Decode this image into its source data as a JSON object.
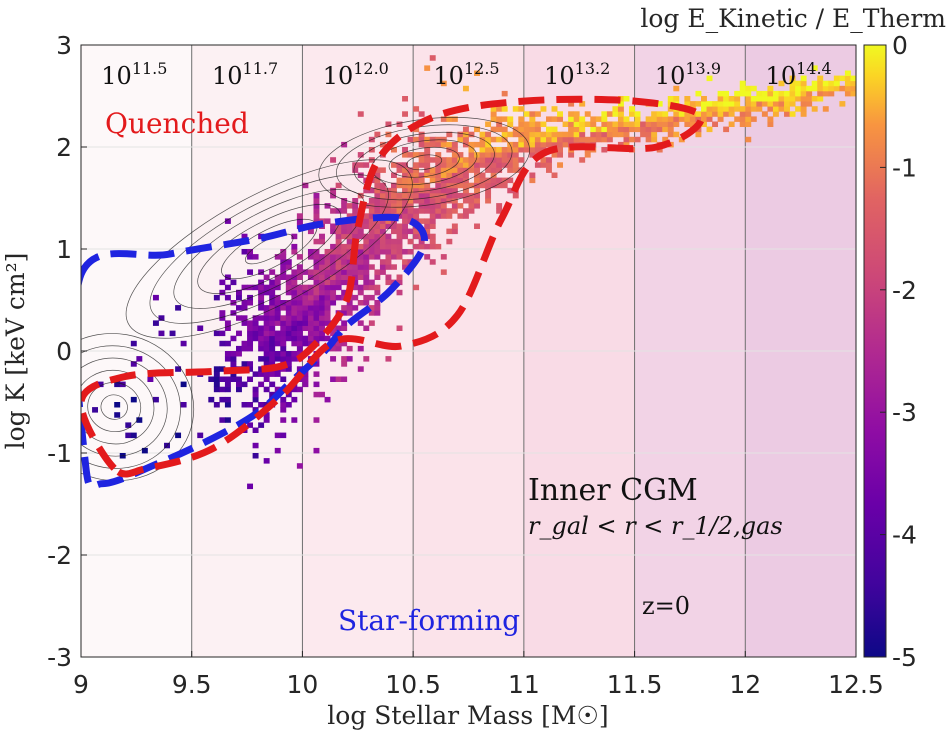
{
  "chart_data": {
    "type": "heatmap",
    "xlabel": "log Stellar Mass [M☉]",
    "ylabel": "log K [keV cm²]",
    "xlim": [
      9,
      12.5
    ],
    "ylim": [
      -3,
      3
    ],
    "x_ticks": [
      9,
      9.5,
      10,
      10.5,
      11,
      11.5,
      12,
      12.5
    ],
    "x_tick_labels": [
      "9",
      "9.5",
      "10",
      "10.5",
      "11",
      "11.5",
      "12",
      "12.5"
    ],
    "y_ticks": [
      -3,
      -2,
      -1,
      0,
      1,
      2,
      3
    ],
    "y_tick_labels": [
      "-3",
      "-2",
      "-1",
      "0",
      "1",
      "2",
      "3"
    ],
    "colorbar": {
      "label": "log E_Kinetic / E_Therm",
      "range": [
        -5,
        0
      ],
      "ticks": [
        0,
        -1,
        -2,
        -3,
        -4,
        -5
      ],
      "tick_labels": [
        "0",
        "-1",
        "-2",
        "-3",
        "-4",
        "-5"
      ],
      "colormap": "plasma"
    },
    "halo_mass_bands": [
      {
        "x_range": [
          9.0,
          9.5
        ],
        "label_base": "10",
        "label_exp": "11.5",
        "shade": "#fdf8f9"
      },
      {
        "x_range": [
          9.5,
          10.0
        ],
        "label_base": "10",
        "label_exp": "11.7",
        "shade": "#fcf1f3"
      },
      {
        "x_range": [
          10.0,
          10.5
        ],
        "label_base": "10",
        "label_exp": "12.0",
        "shade": "#fce9ee"
      },
      {
        "x_range": [
          10.5,
          11.0
        ],
        "label_base": "10",
        "label_exp": "12.5",
        "shade": "#fbe3ea"
      },
      {
        "x_range": [
          11.0,
          11.5
        ],
        "label_base": "10",
        "label_exp": "13.2",
        "shade": "#f9dbe6"
      },
      {
        "x_range": [
          11.5,
          12.0
        ],
        "label_base": "10",
        "label_exp": "13.9",
        "shade": "#f2d3e6"
      },
      {
        "x_range": [
          12.0,
          12.5
        ],
        "label_base": "10",
        "label_exp": "14.4",
        "shade": "#eccbe3"
      }
    ],
    "ridge": [
      {
        "x": 9.0,
        "y": -0.55,
        "w": 0.5,
        "c": -4.6
      },
      {
        "x": 9.2,
        "y": -0.45,
        "w": 0.65,
        "c": -4.5
      },
      {
        "x": 9.4,
        "y": -0.3,
        "w": 0.75,
        "c": -4.4
      },
      {
        "x": 9.6,
        "y": -0.15,
        "w": 0.8,
        "c": -4.2
      },
      {
        "x": 9.8,
        "y": 0.05,
        "w": 0.85,
        "c": -3.7
      },
      {
        "x": 10.0,
        "y": 0.35,
        "w": 0.85,
        "c": -3.0
      },
      {
        "x": 10.2,
        "y": 0.85,
        "w": 0.85,
        "c": -2.3
      },
      {
        "x": 10.4,
        "y": 1.3,
        "w": 0.8,
        "c": -1.7
      },
      {
        "x": 10.6,
        "y": 1.65,
        "w": 0.7,
        "c": -1.3
      },
      {
        "x": 10.8,
        "y": 1.85,
        "w": 0.5,
        "c": -1.0
      },
      {
        "x": 11.0,
        "y": 2.0,
        "w": 0.35,
        "c": -0.85
      },
      {
        "x": 11.3,
        "y": 2.15,
        "w": 0.25,
        "c": -0.7
      },
      {
        "x": 11.6,
        "y": 2.25,
        "w": 0.2,
        "c": -0.55
      },
      {
        "x": 12.0,
        "y": 2.4,
        "w": 0.2,
        "c": -0.35
      },
      {
        "x": 12.4,
        "y": 2.6,
        "w": 0.15,
        "c": -0.2
      }
    ],
    "contour_centers": [
      {
        "x": 9.15,
        "y": -0.55
      },
      {
        "x": 9.85,
        "y": 1.0
      },
      {
        "x": 10.55,
        "y": 1.85
      }
    ],
    "quenched_contour": {
      "label": "Quenched",
      "color": "#e31a1c",
      "points": [
        [
          9.15,
          -1.15
        ],
        [
          9.0,
          -0.5
        ],
        [
          9.2,
          -0.25
        ],
        [
          9.6,
          -0.2
        ],
        [
          9.9,
          -0.15
        ],
        [
          10.05,
          0.05
        ],
        [
          10.2,
          0.5
        ],
        [
          10.25,
          1.2
        ],
        [
          10.35,
          1.9
        ],
        [
          10.6,
          2.3
        ],
        [
          11.0,
          2.45
        ],
        [
          11.5,
          2.45
        ],
        [
          11.8,
          2.3
        ],
        [
          11.6,
          2.0
        ],
        [
          11.1,
          1.95
        ],
        [
          10.9,
          1.3
        ],
        [
          10.7,
          0.35
        ],
        [
          10.45,
          0.05
        ],
        [
          10.15,
          0.1
        ],
        [
          9.9,
          -0.45
        ],
        [
          9.6,
          -0.95
        ],
        [
          9.3,
          -1.15
        ]
      ]
    },
    "starforming_contour": {
      "label": "Star-forming",
      "color": "#1f24e0",
      "points": [
        [
          9.0,
          0.75
        ],
        [
          9.4,
          0.95
        ],
        [
          9.8,
          1.1
        ],
        [
          10.1,
          1.25
        ],
        [
          10.45,
          1.3
        ],
        [
          10.55,
          1.05
        ],
        [
          10.4,
          0.6
        ],
        [
          10.2,
          0.25
        ],
        [
          10.1,
          0.0
        ],
        [
          9.95,
          -0.3
        ],
        [
          9.8,
          -0.6
        ],
        [
          9.6,
          -0.85
        ],
        [
          9.35,
          -1.1
        ],
        [
          9.1,
          -1.3
        ],
        [
          9.02,
          -1.1
        ]
      ]
    },
    "annotations": {
      "inner_cgm": "Inner CGM",
      "radius_condition": "r_gal < r < r_1/2,gas",
      "redshift": "z=0"
    }
  }
}
